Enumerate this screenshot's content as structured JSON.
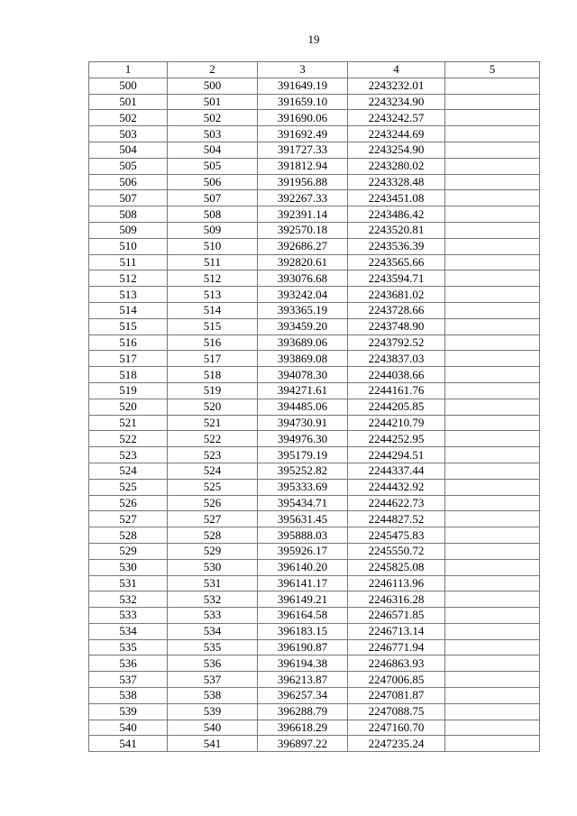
{
  "page_number": "19",
  "table": {
    "headers": [
      "1",
      "2",
      "3",
      "4",
      "5"
    ],
    "rows": [
      [
        "500",
        "500",
        "391649.19",
        "2243232.01",
        ""
      ],
      [
        "501",
        "501",
        "391659.10",
        "2243234.90",
        ""
      ],
      [
        "502",
        "502",
        "391690.06",
        "2243242.57",
        ""
      ],
      [
        "503",
        "503",
        "391692.49",
        "2243244.69",
        ""
      ],
      [
        "504",
        "504",
        "391727.33",
        "2243254.90",
        ""
      ],
      [
        "505",
        "505",
        "391812.94",
        "2243280.02",
        ""
      ],
      [
        "506",
        "506",
        "391956.88",
        "2243328.48",
        ""
      ],
      [
        "507",
        "507",
        "392267.33",
        "2243451.08",
        ""
      ],
      [
        "508",
        "508",
        "392391.14",
        "2243486.42",
        ""
      ],
      [
        "509",
        "509",
        "392570.18",
        "2243520.81",
        ""
      ],
      [
        "510",
        "510",
        "392686.27",
        "2243536.39",
        ""
      ],
      [
        "511",
        "511",
        "392820.61",
        "2243565.66",
        ""
      ],
      [
        "512",
        "512",
        "393076.68",
        "2243594.71",
        ""
      ],
      [
        "513",
        "513",
        "393242.04",
        "2243681.02",
        ""
      ],
      [
        "514",
        "514",
        "393365.19",
        "2243728.66",
        ""
      ],
      [
        "515",
        "515",
        "393459.20",
        "2243748.90",
        ""
      ],
      [
        "516",
        "516",
        "393689.06",
        "2243792.52",
        ""
      ],
      [
        "517",
        "517",
        "393869.08",
        "2243837.03",
        ""
      ],
      [
        "518",
        "518",
        "394078.30",
        "2244038.66",
        ""
      ],
      [
        "519",
        "519",
        "394271.61",
        "2244161.76",
        ""
      ],
      [
        "520",
        "520",
        "394485.06",
        "2244205.85",
        ""
      ],
      [
        "521",
        "521",
        "394730.91",
        "2244210.79",
        ""
      ],
      [
        "522",
        "522",
        "394976.30",
        "2244252.95",
        ""
      ],
      [
        "523",
        "523",
        "395179.19",
        "2244294.51",
        ""
      ],
      [
        "524",
        "524",
        "395252.82",
        "2244337.44",
        ""
      ],
      [
        "525",
        "525",
        "395333.69",
        "2244432.92",
        ""
      ],
      [
        "526",
        "526",
        "395434.71",
        "2244622.73",
        ""
      ],
      [
        "527",
        "527",
        "395631.45",
        "2244827.52",
        ""
      ],
      [
        "528",
        "528",
        "395888.03",
        "2245475.83",
        ""
      ],
      [
        "529",
        "529",
        "395926.17",
        "2245550.72",
        ""
      ],
      [
        "530",
        "530",
        "396140.20",
        "2245825.08",
        ""
      ],
      [
        "531",
        "531",
        "396141.17",
        "2246113.96",
        ""
      ],
      [
        "532",
        "532",
        "396149.21",
        "2246316.28",
        ""
      ],
      [
        "533",
        "533",
        "396164.58",
        "2246571.85",
        ""
      ],
      [
        "534",
        "534",
        "396183.15",
        "2246713.14",
        ""
      ],
      [
        "535",
        "535",
        "396190.87",
        "2246771.94",
        ""
      ],
      [
        "536",
        "536",
        "396194.38",
        "2246863.93",
        ""
      ],
      [
        "537",
        "537",
        "396213.87",
        "2247006.85",
        ""
      ],
      [
        "538",
        "538",
        "396257.34",
        "2247081.87",
        ""
      ],
      [
        "539",
        "539",
        "396288.79",
        "2247088.75",
        ""
      ],
      [
        "540",
        "540",
        "396618.29",
        "2247160.70",
        ""
      ],
      [
        "541",
        "541",
        "396897.22",
        "2247235.24",
        ""
      ]
    ]
  }
}
